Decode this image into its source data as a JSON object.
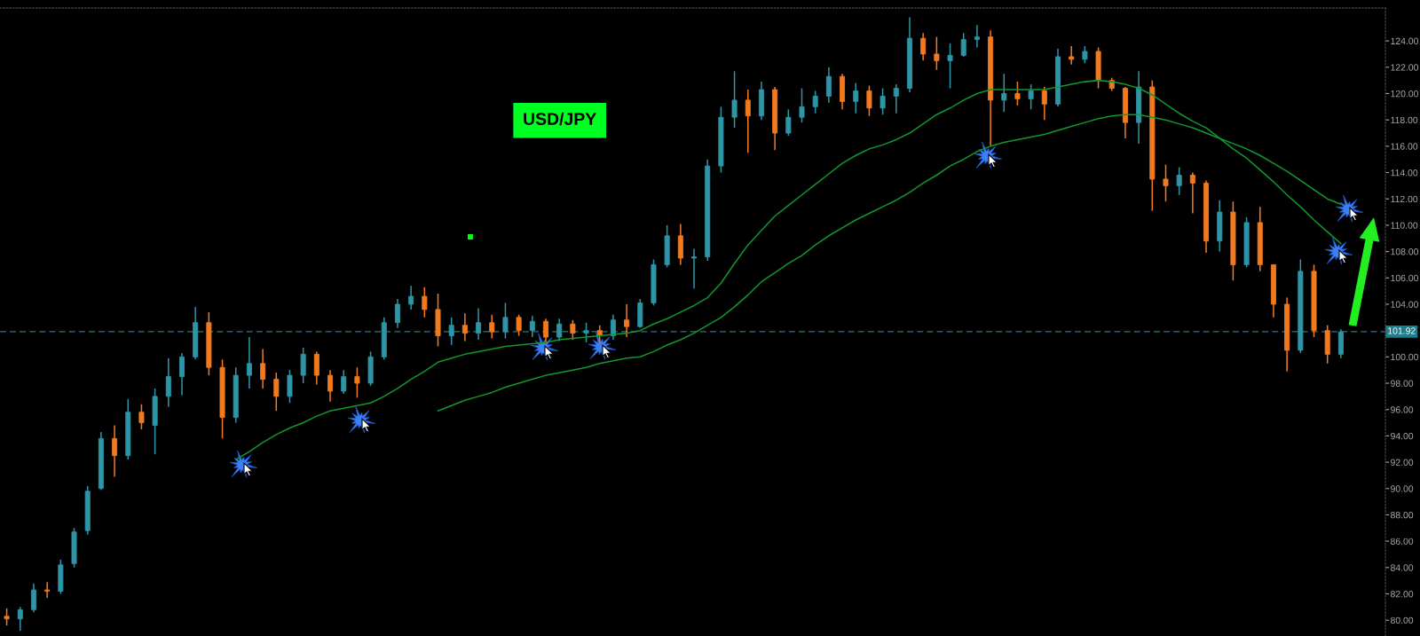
{
  "chart_data": {
    "type": "candlestick",
    "title": "USD/JPY",
    "categories": [
      null,
      null,
      null,
      null,
      null,
      null,
      null,
      null,
      null,
      null,
      null,
      null,
      null,
      null,
      null,
      null,
      null,
      null,
      null,
      null,
      null,
      null,
      null,
      null,
      null,
      null,
      null,
      null,
      null,
      null,
      null,
      null,
      null,
      null,
      null,
      null,
      null,
      null,
      null,
      null,
      null,
      null,
      null,
      null,
      null,
      null,
      null,
      null,
      null,
      null,
      null,
      null,
      null,
      null,
      null,
      null,
      null,
      null,
      null,
      null,
      null,
      null,
      null,
      null,
      null,
      null,
      null,
      null,
      null,
      null,
      null,
      null,
      null,
      null,
      null,
      null,
      null,
      null,
      null,
      null,
      null,
      null,
      null,
      null,
      null,
      null,
      null,
      null,
      null,
      null,
      null,
      null,
      null,
      null,
      null,
      null,
      null,
      null,
      null,
      null
    ],
    "ohlc": [
      [
        80.3,
        80.9,
        79.6,
        80.1
      ],
      [
        80.1,
        81.0,
        79.2,
        80.8
      ],
      [
        80.8,
        82.8,
        80.6,
        82.3
      ],
      [
        82.3,
        82.9,
        81.7,
        82.2
      ],
      [
        82.2,
        84.6,
        82.0,
        84.2
      ],
      [
        84.3,
        87.0,
        84.0,
        86.7
      ],
      [
        86.8,
        90.2,
        86.5,
        89.8
      ],
      [
        90.0,
        94.3,
        89.9,
        93.8
      ],
      [
        93.8,
        94.8,
        90.9,
        92.5
      ],
      [
        92.5,
        96.8,
        92.2,
        95.8
      ],
      [
        95.8,
        96.4,
        94.5,
        95.0
      ],
      [
        94.8,
        97.6,
        92.6,
        97.0
      ],
      [
        97.0,
        99.9,
        96.2,
        98.5
      ],
      [
        98.5,
        100.3,
        97.1,
        100.0
      ],
      [
        100.0,
        103.8,
        99.8,
        102.6
      ],
      [
        102.6,
        103.4,
        98.6,
        99.2
      ],
      [
        99.2,
        99.8,
        93.8,
        95.4
      ],
      [
        95.4,
        99.2,
        95.0,
        98.6
      ],
      [
        98.6,
        101.5,
        97.6,
        99.5
      ],
      [
        99.5,
        100.6,
        97.6,
        98.3
      ],
      [
        98.3,
        98.8,
        95.9,
        97.0
      ],
      [
        97.0,
        99.0,
        96.5,
        98.6
      ],
      [
        98.6,
        100.7,
        98.0,
        100.2
      ],
      [
        100.2,
        100.4,
        97.9,
        98.6
      ],
      [
        98.6,
        99.0,
        96.6,
        97.4
      ],
      [
        97.4,
        99.0,
        97.2,
        98.5
      ],
      [
        98.5,
        99.2,
        96.9,
        98.0
      ],
      [
        98.0,
        100.4,
        97.8,
        100.0
      ],
      [
        100.0,
        103.0,
        99.8,
        102.6
      ],
      [
        102.6,
        104.4,
        102.2,
        104.0
      ],
      [
        104.0,
        105.4,
        103.6,
        104.6
      ],
      [
        104.6,
        105.3,
        103.0,
        103.6
      ],
      [
        103.6,
        104.8,
        100.8,
        101.6
      ],
      [
        101.6,
        103.0,
        100.9,
        102.4
      ],
      [
        102.4,
        103.3,
        101.2,
        101.8
      ],
      [
        101.8,
        103.7,
        101.3,
        102.6
      ],
      [
        102.6,
        103.2,
        101.4,
        101.9
      ],
      [
        101.9,
        104.1,
        101.4,
        103.0
      ],
      [
        103.0,
        103.2,
        101.6,
        102.0
      ],
      [
        102.0,
        103.1,
        101.5,
        102.7
      ],
      [
        102.7,
        102.9,
        101.1,
        101.5
      ],
      [
        101.5,
        102.9,
        101.2,
        102.5
      ],
      [
        102.5,
        102.8,
        101.3,
        101.8
      ],
      [
        101.8,
        102.6,
        101.1,
        102.0
      ],
      [
        102.0,
        102.4,
        101.1,
        101.6
      ],
      [
        101.6,
        103.2,
        101.3,
        102.8
      ],
      [
        102.8,
        104.0,
        101.5,
        102.3
      ],
      [
        102.3,
        104.4,
        102.2,
        104.1
      ],
      [
        104.1,
        107.4,
        103.9,
        107.0
      ],
      [
        107.0,
        110.0,
        106.8,
        109.2
      ],
      [
        109.2,
        110.1,
        107.0,
        107.5
      ],
      [
        107.5,
        108.2,
        105.2,
        107.6
      ],
      [
        107.6,
        115.0,
        107.3,
        114.5
      ],
      [
        114.5,
        119.0,
        114.0,
        118.2
      ],
      [
        118.2,
        121.7,
        117.4,
        119.5
      ],
      [
        119.5,
        120.3,
        115.5,
        118.3
      ],
      [
        118.3,
        120.9,
        118.0,
        120.3
      ],
      [
        120.3,
        120.5,
        115.7,
        117.0
      ],
      [
        117.0,
        118.8,
        116.8,
        118.2
      ],
      [
        118.2,
        120.4,
        117.8,
        119.0
      ],
      [
        119.0,
        120.2,
        118.5,
        119.8
      ],
      [
        119.8,
        122.0,
        119.3,
        121.3
      ],
      [
        121.3,
        121.5,
        118.8,
        119.4
      ],
      [
        119.4,
        120.8,
        118.5,
        120.2
      ],
      [
        120.2,
        120.6,
        118.3,
        118.9
      ],
      [
        118.9,
        120.4,
        118.4,
        119.8
      ],
      [
        119.8,
        120.7,
        118.5,
        120.4
      ],
      [
        120.4,
        125.8,
        120.1,
        124.2
      ],
      [
        124.2,
        124.6,
        122.5,
        123.0
      ],
      [
        123.0,
        124.3,
        121.8,
        122.5
      ],
      [
        122.5,
        123.8,
        120.4,
        122.9
      ],
      [
        122.9,
        124.6,
        122.8,
        124.1
      ],
      [
        124.1,
        125.2,
        123.5,
        124.3
      ],
      [
        124.3,
        124.8,
        116.0,
        119.5
      ],
      [
        119.5,
        121.5,
        118.6,
        120.0
      ],
      [
        120.0,
        120.9,
        119.1,
        119.6
      ],
      [
        119.6,
        120.7,
        118.8,
        120.2
      ],
      [
        120.2,
        120.5,
        118.0,
        119.2
      ],
      [
        119.2,
        123.4,
        119.0,
        122.8
      ],
      [
        122.8,
        123.6,
        122.2,
        122.6
      ],
      [
        122.6,
        123.6,
        122.3,
        123.2
      ],
      [
        123.2,
        123.5,
        120.4,
        121.0
      ],
      [
        121.0,
        121.2,
        120.2,
        120.4
      ],
      [
        120.4,
        120.5,
        116.6,
        117.8
      ],
      [
        117.8,
        121.7,
        116.2,
        120.5
      ],
      [
        120.5,
        121.0,
        111.1,
        113.5
      ],
      [
        113.5,
        114.6,
        111.8,
        113.0
      ],
      [
        113.0,
        114.4,
        112.3,
        113.8
      ],
      [
        113.8,
        114.0,
        110.9,
        113.2
      ],
      [
        113.2,
        113.4,
        107.9,
        108.8
      ],
      [
        108.8,
        111.9,
        108.0,
        111.0
      ],
      [
        111.0,
        111.8,
        105.8,
        107.0
      ],
      [
        107.0,
        110.6,
        106.8,
        110.2
      ],
      [
        110.2,
        111.4,
        106.5,
        107.0
      ],
      [
        107.0,
        107.0,
        103.0,
        104.0
      ],
      [
        104.0,
        104.5,
        98.9,
        100.5
      ],
      [
        100.5,
        107.4,
        100.3,
        106.5
      ],
      [
        106.5,
        107.0,
        101.5,
        102.0
      ],
      [
        102.0,
        102.4,
        99.5,
        100.2
      ],
      [
        100.2,
        102.1,
        99.9,
        101.9
      ]
    ],
    "colors": [
      "#f07a20",
      "#2e94a6",
      "#2e94a6",
      "#f07a20",
      "#2e94a6",
      "#2e94a6",
      "#2e94a6",
      "#2e94a6",
      "#f07a20",
      "#2e94a6",
      "#f07a20",
      "#2e94a6",
      "#2e94a6",
      "#2e94a6",
      "#2e94a6",
      "#f07a20",
      "#f07a20",
      "#2e94a6",
      "#2e94a6",
      "#f07a20",
      "#f07a20",
      "#2e94a6",
      "#2e94a6",
      "#f07a20",
      "#f07a20",
      "#2e94a6",
      "#f07a20",
      "#2e94a6",
      "#2e94a6",
      "#2e94a6",
      "#2e94a6",
      "#f07a20",
      "#f07a20",
      "#2e94a6",
      "#f07a20",
      "#2e94a6",
      "#f07a20",
      "#2e94a6",
      "#f07a20",
      "#2e94a6",
      "#f07a20",
      "#2e94a6",
      "#f07a20",
      "#2e94a6",
      "#f07a20",
      "#2e94a6",
      "#f07a20",
      "#2e94a6",
      "#2e94a6",
      "#2e94a6",
      "#f07a20",
      "#2e94a6",
      "#2e94a6",
      "#2e94a6",
      "#2e94a6",
      "#f07a20",
      "#2e94a6",
      "#f07a20",
      "#2e94a6",
      "#2e94a6",
      "#2e94a6",
      "#2e94a6",
      "#f07a20",
      "#2e94a6",
      "#f07a20",
      "#2e94a6",
      "#2e94a6",
      "#2e94a6",
      "#f07a20",
      "#f07a20",
      "#2e94a6",
      "#2e94a6",
      "#2e94a6",
      "#f07a20",
      "#2e94a6",
      "#f07a20",
      "#2e94a6",
      "#f07a20",
      "#2e94a6",
      "#f07a20",
      "#2e94a6",
      "#f07a20",
      "#f07a20",
      "#f07a20",
      "#2e94a6",
      "#f07a20",
      "#f07a20",
      "#2e94a6",
      "#f07a20",
      "#f07a20",
      "#2e94a6",
      "#f07a20",
      "#2e94a6",
      "#f07a20",
      "#f07a20",
      "#f07a20",
      "#2e94a6",
      "#f07a20",
      "#f07a20",
      "#2e94a6"
    ],
    "series": [
      {
        "type": "line",
        "color": "#12962e",
        "values": [
          null,
          null,
          null,
          null,
          null,
          null,
          null,
          null,
          null,
          null,
          null,
          null,
          null,
          null,
          null,
          null,
          null,
          92.2,
          92.8,
          93.5,
          94.1,
          94.6,
          95.0,
          95.5,
          95.9,
          96.1,
          96.3,
          96.5,
          97.0,
          97.6,
          98.3,
          98.9,
          99.6,
          99.9,
          100.2,
          100.4,
          100.6,
          100.8,
          100.9,
          101.0,
          101.1,
          101.3,
          101.4,
          101.5,
          101.6,
          101.7,
          101.8,
          102.0,
          102.5,
          102.9,
          103.4,
          103.9,
          104.5,
          105.6,
          107.1,
          108.5,
          109.6,
          110.7,
          111.5,
          112.3,
          113.1,
          113.9,
          114.7,
          115.3,
          115.8,
          116.1,
          116.5,
          117.0,
          117.7,
          118.4,
          118.9,
          119.5,
          120.0,
          120.3,
          120.3,
          120.3,
          120.3,
          120.3,
          120.5,
          120.7,
          120.9,
          121.0,
          120.9,
          120.7,
          120.4,
          119.9,
          119.2,
          118.5,
          117.9,
          117.4,
          116.6,
          115.8,
          115.1,
          114.2,
          113.3,
          112.3,
          111.4,
          110.4,
          109.5,
          108.6
        ]
      },
      {
        "type": "line",
        "color": "#12962e",
        "values": [
          null,
          null,
          null,
          null,
          null,
          null,
          null,
          null,
          null,
          null,
          null,
          null,
          null,
          null,
          null,
          null,
          null,
          null,
          null,
          null,
          null,
          null,
          null,
          null,
          null,
          null,
          null,
          null,
          null,
          null,
          null,
          null,
          95.9,
          96.3,
          96.7,
          97.0,
          97.3,
          97.7,
          98.0,
          98.3,
          98.6,
          98.8,
          99.0,
          99.2,
          99.5,
          99.7,
          99.9,
          100.0,
          100.4,
          100.9,
          101.3,
          101.8,
          102.4,
          103.0,
          103.8,
          104.7,
          105.7,
          106.4,
          107.1,
          107.7,
          108.5,
          109.2,
          109.8,
          110.4,
          110.9,
          111.4,
          111.9,
          112.5,
          113.2,
          113.8,
          114.5,
          115.0,
          115.6,
          116.0,
          116.3,
          116.5,
          116.7,
          116.9,
          117.2,
          117.5,
          117.8,
          118.1,
          118.3,
          118.4,
          118.4,
          118.2,
          118.0,
          117.7,
          117.4,
          117.0,
          116.6,
          116.2,
          115.8,
          115.3,
          114.7,
          114.1,
          113.4,
          112.7,
          112.0,
          111.6
        ]
      }
    ],
    "ylim": [
      78.8,
      126.5
    ],
    "yticks": [
      {
        "value": 80,
        "label": "80.00"
      },
      {
        "value": 82,
        "label": "82.00"
      },
      {
        "value": 84,
        "label": "84.00"
      },
      {
        "value": 86,
        "label": "86.00"
      },
      {
        "value": 88,
        "label": "88.00"
      },
      {
        "value": 90,
        "label": "90.00"
      },
      {
        "value": 92,
        "label": "92.00"
      },
      {
        "value": 94,
        "label": "94.00"
      },
      {
        "value": 96,
        "label": "96.00"
      },
      {
        "value": 98,
        "label": "98.00"
      },
      {
        "value": 100,
        "label": "100.00"
      },
      {
        "value": 104,
        "label": "104.00"
      },
      {
        "value": 106,
        "label": "106.00"
      },
      {
        "value": 108,
        "label": "108.00"
      },
      {
        "value": 110,
        "label": "110.00"
      },
      {
        "value": 112,
        "label": "112.00"
      },
      {
        "value": 114,
        "label": "114.00"
      },
      {
        "value": 116,
        "label": "116.00"
      },
      {
        "value": 118,
        "label": "118.00"
      },
      {
        "value": 120,
        "label": "120.00"
      },
      {
        "value": 122,
        "label": "122.00"
      },
      {
        "value": 124,
        "label": "124.00"
      }
    ],
    "ref_lines": [
      {
        "axis": "y",
        "value": 101.92,
        "label": "101.92",
        "color": "#1c7d8c",
        "line_style": "dashed"
      }
    ],
    "tick_labels": "y"
  }
}
